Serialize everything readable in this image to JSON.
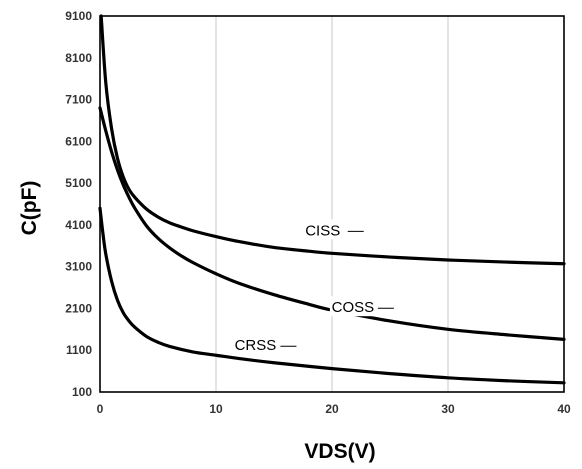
{
  "chart_data": {
    "type": "line",
    "xlabel": "VDS(V)",
    "ylabel": "C(pF)",
    "xlim": [
      0,
      40
    ],
    "ylim": [
      100,
      9100
    ],
    "x_ticks": [
      0,
      10,
      20,
      30,
      40
    ],
    "y_ticks": [
      100,
      1100,
      2100,
      3100,
      4100,
      5100,
      6100,
      7100,
      8100,
      9100
    ],
    "grid": "vertical",
    "legend": "none",
    "series": [
      {
        "name": "CISS",
        "x": [
          0.1,
          0.5,
          1,
          1.5,
          2,
          2.5,
          3,
          4,
          5,
          6,
          7,
          8,
          10,
          12,
          15,
          18,
          20,
          25,
          30,
          35,
          40
        ],
        "y": [
          9100,
          7500,
          6400,
          5700,
          5250,
          4950,
          4760,
          4480,
          4290,
          4150,
          4050,
          3960,
          3820,
          3700,
          3560,
          3470,
          3420,
          3330,
          3260,
          3210,
          3170
        ]
      },
      {
        "name": "COSS",
        "x": [
          0,
          0.5,
          1,
          1.5,
          2,
          2.5,
          3,
          4,
          5,
          6,
          7,
          8,
          10,
          12,
          15,
          18,
          20,
          25,
          30,
          35,
          40
        ],
        "y": [
          6900,
          6350,
          5850,
          5420,
          5060,
          4760,
          4500,
          4080,
          3780,
          3550,
          3360,
          3200,
          2930,
          2700,
          2430,
          2200,
          2060,
          1800,
          1600,
          1470,
          1360
        ]
      },
      {
        "name": "CRSS",
        "x": [
          0,
          0.25,
          0.5,
          1,
          1.5,
          2,
          2.5,
          3,
          4,
          5,
          6,
          8,
          10,
          12,
          15,
          20,
          25,
          30,
          35,
          40
        ],
        "y": [
          4500,
          3900,
          3400,
          2750,
          2300,
          2000,
          1800,
          1650,
          1430,
          1290,
          1190,
          1060,
          980,
          900,
          800,
          660,
          540,
          440,
          370,
          320
        ]
      }
    ],
    "annotations": [
      {
        "text": "CISS",
        "x": 19.2,
        "y": 3970
      },
      {
        "text": "COSS",
        "x": 21.8,
        "y": 2130
      },
      {
        "text": "CRSS",
        "x": 13.4,
        "y": 1220
      }
    ]
  }
}
